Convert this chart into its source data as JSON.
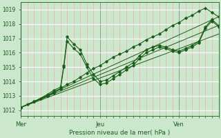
{
  "title": "Pression niveau de la mer( hPa )",
  "ylabel_ticks": [
    1012,
    1013,
    1014,
    1015,
    1016,
    1017,
    1018,
    1019
  ],
  "ylim": [
    1011.6,
    1019.5
  ],
  "xlim": [
    0,
    60
  ],
  "x_ticks": [
    0,
    24,
    48
  ],
  "x_tick_labels": [
    "Mer",
    "Jeu",
    "Ven"
  ],
  "bg_color": "#cce8cc",
  "grid_major_y_color": "#ffffff",
  "grid_minor_x_color": "#f5aaaa",
  "grid_major_x_color": "#888888",
  "line_color": "#1a5c1a",
  "series1_x": [
    0,
    2,
    4,
    6,
    8,
    10,
    12,
    14,
    16,
    18,
    20,
    22,
    24,
    26,
    28,
    30,
    32,
    34,
    36,
    38,
    40,
    42,
    44,
    46,
    48,
    50,
    52,
    54,
    56,
    58,
    60
  ],
  "series1_y": [
    1012.2,
    1012.4,
    1012.6,
    1012.8,
    1013.0,
    1013.2,
    1013.5,
    1013.8,
    1014.0,
    1014.3,
    1014.6,
    1014.9,
    1015.1,
    1015.4,
    1015.7,
    1015.9,
    1016.1,
    1016.4,
    1016.6,
    1016.9,
    1017.1,
    1017.3,
    1017.6,
    1017.9,
    1018.1,
    1018.4,
    1018.6,
    1018.9,
    1019.1,
    1018.8,
    1018.5
  ],
  "series2_x": [
    0,
    4,
    8,
    10,
    12,
    13,
    14,
    16,
    18,
    20,
    22,
    24,
    26,
    28,
    30,
    32,
    34,
    36,
    38,
    40,
    42,
    44,
    46,
    48,
    50,
    52,
    54,
    56,
    58,
    60
  ],
  "series2_y": [
    1012.2,
    1012.6,
    1013.1,
    1013.4,
    1013.6,
    1015.1,
    1017.1,
    1016.6,
    1016.2,
    1015.2,
    1014.5,
    1014.0,
    1014.1,
    1014.4,
    1014.7,
    1015.0,
    1015.3,
    1015.8,
    1016.2,
    1016.4,
    1016.5,
    1016.4,
    1016.2,
    1016.1,
    1016.3,
    1016.5,
    1016.8,
    1017.8,
    1018.3,
    1017.9
  ],
  "series3_x": [
    0,
    4,
    8,
    10,
    12,
    13,
    14,
    16,
    18,
    20,
    22,
    24,
    26,
    28,
    30,
    32,
    34,
    36,
    38,
    40,
    42,
    44,
    46,
    48,
    50,
    52,
    54,
    56,
    58,
    60
  ],
  "series3_y": [
    1012.2,
    1012.6,
    1013.0,
    1013.3,
    1013.5,
    1015.0,
    1016.8,
    1016.3,
    1015.9,
    1015.0,
    1014.2,
    1013.8,
    1013.9,
    1014.2,
    1014.5,
    1014.8,
    1015.1,
    1015.6,
    1016.0,
    1016.2,
    1016.4,
    1016.3,
    1016.1,
    1016.0,
    1016.2,
    1016.4,
    1016.7,
    1017.7,
    1018.2,
    1017.8
  ],
  "trend1_x": [
    0,
    60
  ],
  "trend1_y": [
    1012.2,
    1018.5
  ],
  "trend2_x": [
    0,
    60
  ],
  "trend2_y": [
    1012.2,
    1017.9
  ],
  "trend3_x": [
    0,
    60
  ],
  "trend3_y": [
    1012.2,
    1017.3
  ]
}
